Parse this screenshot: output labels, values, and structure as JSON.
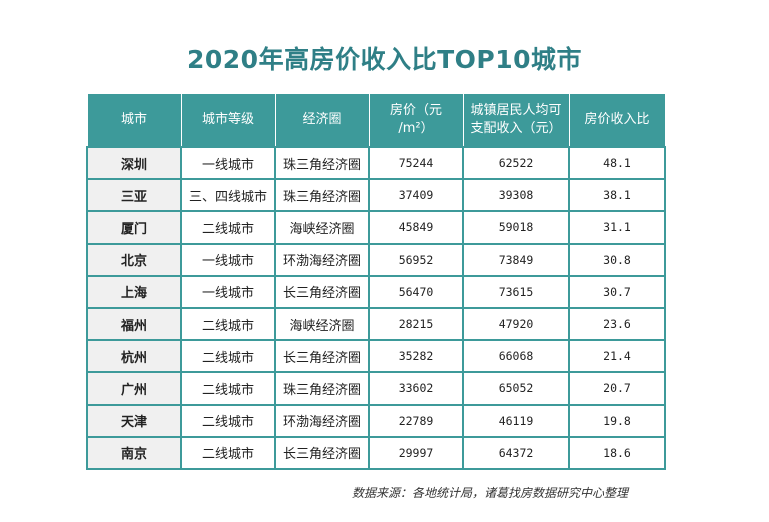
{
  "title": "2020年高房价收入比TOP10城市",
  "table": {
    "headers": {
      "city": "城市",
      "tier": "城市等级",
      "region": "经济圈",
      "price_line1": "房价（元",
      "price_line2": "/m²）",
      "income_line1": "城镇居民人均可",
      "income_line2": "支配收入（元）",
      "ratio": "房价收入比"
    },
    "rows": [
      {
        "city": "深圳",
        "tier": "一线城市",
        "region": "珠三角经济圈",
        "price": "75244",
        "income": "62522",
        "ratio": "48.1"
      },
      {
        "city": "三亚",
        "tier": "三、四线城市",
        "region": "珠三角经济圈",
        "price": "37409",
        "income": "39308",
        "ratio": "38.1"
      },
      {
        "city": "厦门",
        "tier": "二线城市",
        "region": "海峡经济圈",
        "price": "45849",
        "income": "59018",
        "ratio": "31.1"
      },
      {
        "city": "北京",
        "tier": "一线城市",
        "region": "环渤海经济圈",
        "price": "56952",
        "income": "73849",
        "ratio": "30.8"
      },
      {
        "city": "上海",
        "tier": "一线城市",
        "region": "长三角经济圈",
        "price": "56470",
        "income": "73615",
        "ratio": "30.7"
      },
      {
        "city": "福州",
        "tier": "二线城市",
        "region": "海峡经济圈",
        "price": "28215",
        "income": "47920",
        "ratio": "23.6"
      },
      {
        "city": "杭州",
        "tier": "二线城市",
        "region": "长三角经济圈",
        "price": "35282",
        "income": "66068",
        "ratio": "21.4"
      },
      {
        "city": "广州",
        "tier": "二线城市",
        "region": "珠三角经济圈",
        "price": "33602",
        "income": "65052",
        "ratio": "20.7"
      },
      {
        "city": "天津",
        "tier": "二线城市",
        "region": "环渤海经济圈",
        "price": "22789",
        "income": "46119",
        "ratio": "19.8"
      },
      {
        "city": "南京",
        "tier": "二线城市",
        "region": "长三角经济圈",
        "price": "29997",
        "income": "64372",
        "ratio": "18.6"
      }
    ]
  },
  "source": "数据来源：各地统计局，诸葛找房数据研究中心整理",
  "colors": {
    "accent": "#3d9a9a",
    "title": "#2f7f86"
  }
}
